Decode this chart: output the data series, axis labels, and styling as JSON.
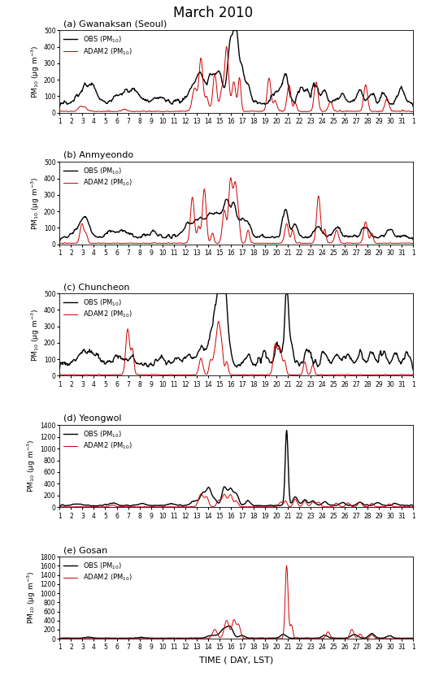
{
  "title": "March 2010",
  "xlabel": "TIME ( DAY, LST)",
  "ylabel": "PM$_{10}$ (μg m$^{-3}$)",
  "panels": [
    {
      "label": "(a) Gwanaksan (Seoul)",
      "ylim": [
        0,
        500
      ],
      "yticks": [
        0,
        100,
        200,
        300,
        400,
        500
      ]
    },
    {
      "label": "(b) Anmyeondo",
      "ylim": [
        0,
        500
      ],
      "yticks": [
        0,
        100,
        200,
        300,
        400,
        500
      ]
    },
    {
      "label": "(c) Chuncheon",
      "ylim": [
        0,
        500
      ],
      "yticks": [
        0,
        100,
        200,
        300,
        400,
        500
      ]
    },
    {
      "label": "(d) Yeongwol",
      "ylim": [
        0,
        1400
      ],
      "yticks": [
        0,
        200,
        400,
        600,
        800,
        1000,
        1200,
        1400
      ]
    },
    {
      "label": "(e) Gosan",
      "ylim": [
        0,
        1800
      ],
      "yticks": [
        0,
        200,
        400,
        600,
        800,
        1000,
        1200,
        1400,
        1600,
        1800
      ]
    }
  ],
  "obs_color": "#000000",
  "mod_color": "#cc0000",
  "obs_lw": 1.0,
  "mod_lw": 0.7,
  "legend_obs": "OBS (PM$_{10}$)",
  "legend_mod": "ADAM2 (PM$_{10}$)",
  "xlim": [
    1,
    32
  ],
  "n_hours": 744,
  "figsize": [
    5.24,
    8.32
  ],
  "dpi": 100
}
